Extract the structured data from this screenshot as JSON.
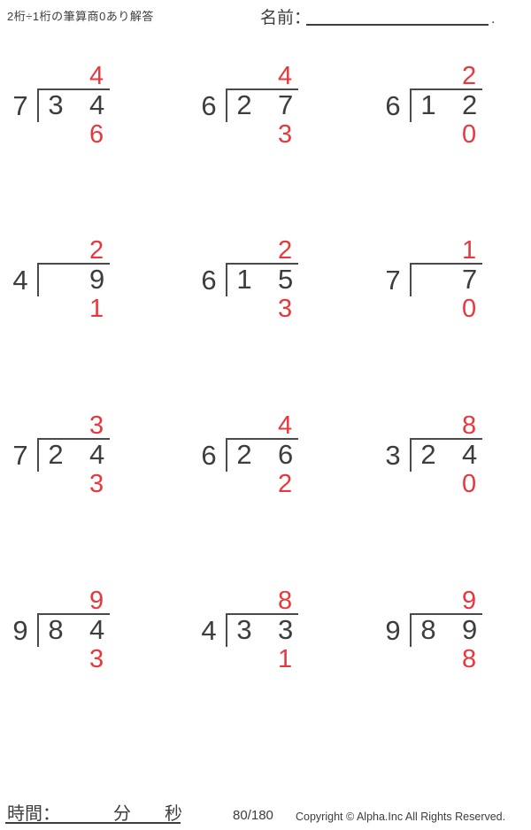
{
  "header": {
    "title": "2桁÷1桁の筆算商0あり解答",
    "name_label": "名前：",
    "name_line_period": "."
  },
  "colors": {
    "accent_red": "#e8383e",
    "ink": "#3d3d3d"
  },
  "problems": [
    {
      "divisor": "7",
      "dividend_tens": "3",
      "dividend_ones": "4",
      "quotient": "4",
      "remainder": "6"
    },
    {
      "divisor": "6",
      "dividend_tens": "2",
      "dividend_ones": "7",
      "quotient": "4",
      "remainder": "3"
    },
    {
      "divisor": "6",
      "dividend_tens": "1",
      "dividend_ones": "2",
      "quotient": "2",
      "remainder": "0"
    },
    {
      "divisor": "4",
      "dividend_tens": "",
      "dividend_ones": "9",
      "quotient": "2",
      "remainder": "1"
    },
    {
      "divisor": "6",
      "dividend_tens": "1",
      "dividend_ones": "5",
      "quotient": "2",
      "remainder": "3"
    },
    {
      "divisor": "7",
      "dividend_tens": "",
      "dividend_ones": "7",
      "quotient": "1",
      "remainder": "0"
    },
    {
      "divisor": "7",
      "dividend_tens": "2",
      "dividend_ones": "4",
      "quotient": "3",
      "remainder": "3"
    },
    {
      "divisor": "6",
      "dividend_tens": "2",
      "dividend_ones": "6",
      "quotient": "4",
      "remainder": "2"
    },
    {
      "divisor": "3",
      "dividend_tens": "2",
      "dividend_ones": "4",
      "quotient": "8",
      "remainder": "0"
    },
    {
      "divisor": "9",
      "dividend_tens": "8",
      "dividend_ones": "4",
      "quotient": "9",
      "remainder": "3"
    },
    {
      "divisor": "4",
      "dividend_tens": "3",
      "dividend_ones": "3",
      "quotient": "8",
      "remainder": "1"
    },
    {
      "divisor": "9",
      "dividend_tens": "8",
      "dividend_ones": "9",
      "quotient": "9",
      "remainder": "8"
    }
  ],
  "footer": {
    "time_label": "時間：",
    "minutes_label": "分",
    "seconds_label": "秒",
    "page_indicator": "80/180",
    "copyright": "Copyright © Alpha.Inc All Rights Reserved."
  }
}
